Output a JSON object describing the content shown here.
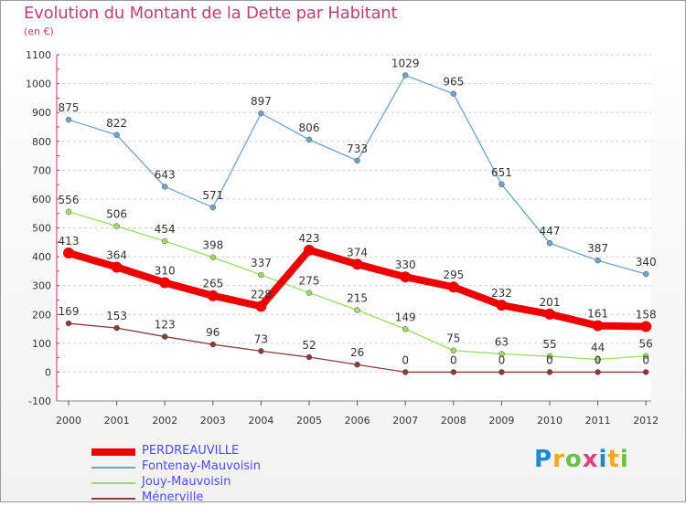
{
  "chart_data": {
    "type": "line",
    "title": "Evolution du Montant de la Dette par Habitant",
    "subtitle": "(en €)",
    "ylim": [
      -100,
      1100
    ],
    "yticks": [
      -100,
      0,
      100,
      200,
      300,
      400,
      500,
      600,
      700,
      800,
      900,
      1000,
      1100
    ],
    "x": [
      2000,
      2001,
      2002,
      2003,
      2004,
      2005,
      2006,
      2007,
      2008,
      2009,
      2010,
      2011,
      2012
    ],
    "grid": "horizontal dashed",
    "legend_position": "bottom-left",
    "series": [
      {
        "name": "PERDREAUVILLE",
        "color": "#ee0000",
        "values": [
          413,
          364,
          310,
          265,
          228,
          423,
          374,
          330,
          295,
          232,
          201,
          161,
          158
        ]
      },
      {
        "name": "Fontenay-Mauvoisin",
        "color": "#6fa3cc",
        "values": [
          875,
          822,
          643,
          571,
          897,
          806,
          733,
          1029,
          965,
          651,
          447,
          387,
          340
        ]
      },
      {
        "name": "Jouy-Mauvoisin",
        "color": "#99dd66",
        "values": [
          556,
          506,
          454,
          398,
          337,
          275,
          215,
          149,
          75,
          63,
          55,
          44,
          56
        ]
      },
      {
        "name": "Ménerville",
        "color": "#8b3a3a",
        "values": [
          169,
          153,
          123,
          96,
          73,
          52,
          26,
          0,
          0,
          0,
          0,
          0,
          0
        ]
      }
    ]
  },
  "logo": {
    "letters": [
      "P",
      "r",
      "o",
      "x",
      "i",
      "t",
      "i"
    ],
    "colors": [
      "#1e88d0",
      "#f5a623",
      "#6cc04a",
      "#e0407a",
      "#1e88d0",
      "#f5a623",
      "#6cc04a"
    ]
  }
}
